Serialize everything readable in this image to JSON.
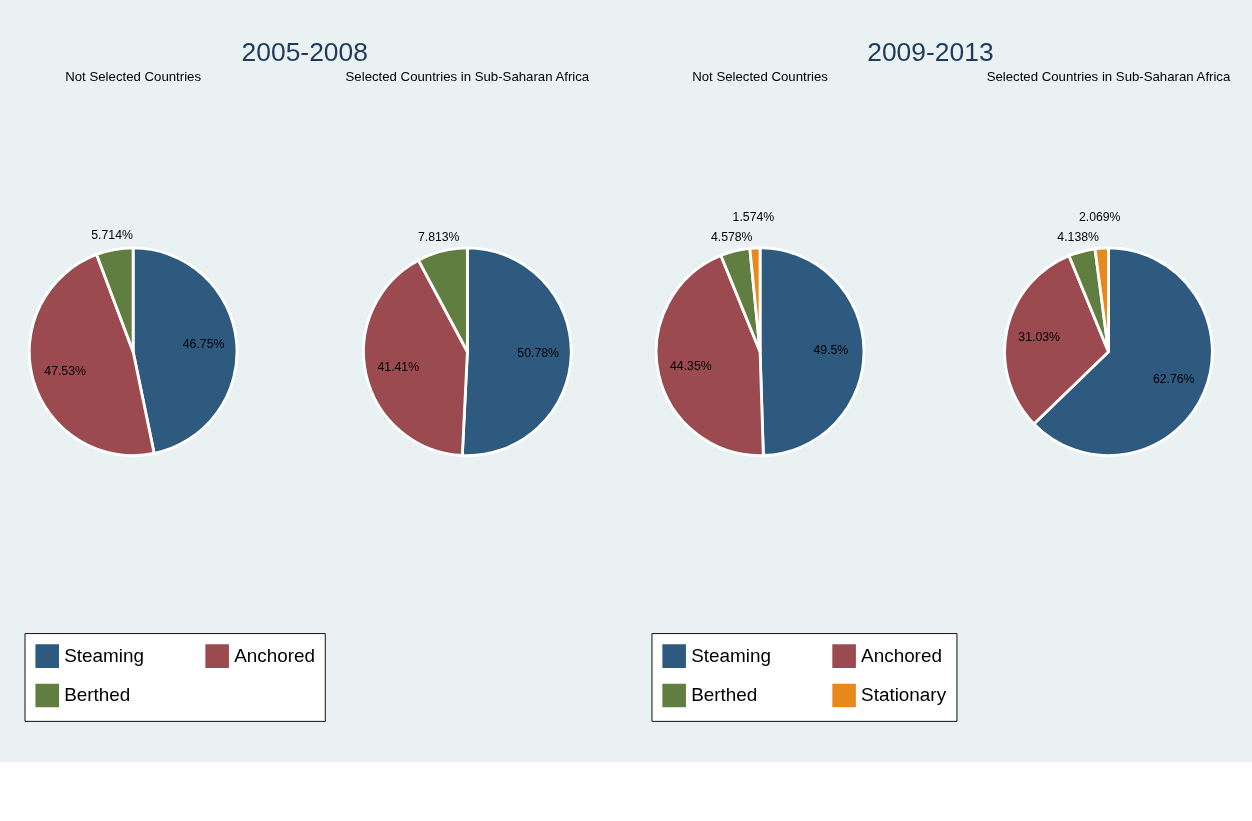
{
  "chart_data": [
    {
      "type": "pie",
      "title": "2005-2008",
      "categories": [
        "Steaming",
        "Anchored",
        "Berthed"
      ],
      "colors": [
        "#2e5a80",
        "#9b4a4f",
        "#5f7e3f"
      ],
      "legend": "bottom",
      "series": [
        {
          "name": "Not Selected Countries",
          "values": [
            46.75,
            47.53,
            5.714
          ],
          "value_labels": [
            "46.75%",
            "47.53%",
            "5.714%"
          ]
        },
        {
          "name": "Selected Countries in Sub-Saharan Africa",
          "values": [
            50.78,
            41.41,
            7.813
          ],
          "value_labels": [
            "50.78%",
            "41.41%",
            "7.813%"
          ]
        }
      ]
    },
    {
      "type": "pie",
      "title": "2009-2013",
      "categories": [
        "Steaming",
        "Anchored",
        "Berthed",
        "Stationary"
      ],
      "colors": [
        "#2e5a80",
        "#9b4a4f",
        "#5f7e3f",
        "#e8891d"
      ],
      "legend": "bottom",
      "series": [
        {
          "name": "Not Selected Countries",
          "values": [
            49.5,
            44.35,
            4.578,
            1.574
          ],
          "value_labels": [
            "49.5%",
            "44.35%",
            "4.578%",
            "1.574%"
          ]
        },
        {
          "name": "Selected Countries in Sub-Saharan Africa",
          "values": [
            62.76,
            31.03,
            4.138,
            2.069
          ],
          "value_labels": [
            "62.76%",
            "31.03%",
            "4.138%",
            "2.069%"
          ]
        }
      ]
    }
  ]
}
